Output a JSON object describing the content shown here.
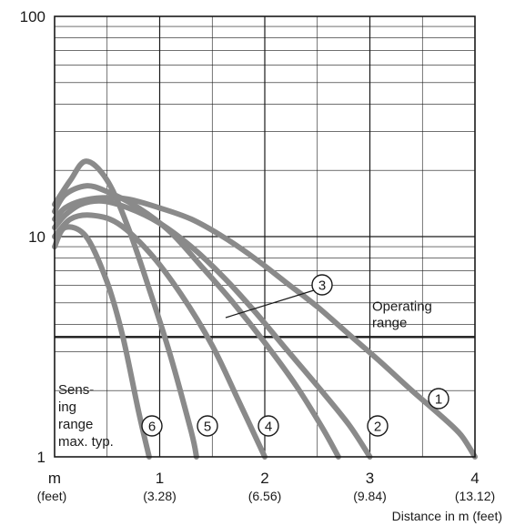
{
  "chart_data": {
    "type": "line",
    "title": "",
    "xlabel": "Distance in m (feet)",
    "ylabel": "",
    "x_unit_label": "m",
    "x_unit_sub_label": "(feet)",
    "xlim": [
      0,
      4
    ],
    "ylim": [
      1,
      100
    ],
    "y_scale": "log",
    "grid": true,
    "x_ticks": [
      {
        "value": 1,
        "label": "1",
        "sub": "(3.28)"
      },
      {
        "value": 2,
        "label": "2",
        "sub": "(6.56)"
      },
      {
        "value": 3,
        "label": "3",
        "sub": "(9.84)"
      },
      {
        "value": 4,
        "label": "4",
        "sub": "(13.12)"
      }
    ],
    "y_ticks": [
      {
        "value": 1,
        "label": "1"
      },
      {
        "value": 10,
        "label": "10"
      },
      {
        "value": 100,
        "label": "100"
      }
    ],
    "operating_range": {
      "value": 3.5,
      "label_line1": "Operating",
      "label_line2": "range"
    },
    "sensing_range_label": [
      "Sens-",
      "ing",
      "range",
      "max. typ."
    ],
    "series": [
      {
        "id": "1",
        "label": "①",
        "x": [
          0.0,
          0.1,
          0.25,
          0.45,
          0.7,
          1.0,
          1.3,
          1.6,
          1.9,
          2.2,
          2.5,
          2.8,
          3.1,
          3.4,
          3.7,
          3.87,
          4.0
        ],
        "y": [
          12.0,
          13.5,
          14.5,
          15.0,
          14.8,
          13.5,
          12.0,
          10.0,
          8.0,
          6.2,
          4.8,
          3.6,
          2.7,
          2.0,
          1.5,
          1.25,
          1.0
        ]
      },
      {
        "id": "2",
        "label": "②",
        "x": [
          0.0,
          0.1,
          0.25,
          0.45,
          0.7,
          1.0,
          1.3,
          1.6,
          1.9,
          2.2,
          2.5,
          2.8,
          3.0
        ],
        "y": [
          11.0,
          12.5,
          14.0,
          14.5,
          13.5,
          11.5,
          9.0,
          6.6,
          4.6,
          3.1,
          2.1,
          1.4,
          1.0
        ]
      },
      {
        "id": "3",
        "label": "③",
        "x": [
          0.0,
          0.1,
          0.3,
          0.5,
          0.8,
          1.1,
          1.4,
          1.7,
          2.0,
          2.3,
          2.55,
          2.7
        ],
        "y": [
          13.0,
          15.5,
          17.0,
          16.0,
          13.5,
          10.5,
          7.3,
          5.0,
          3.3,
          2.1,
          1.35,
          1.0
        ]
      },
      {
        "id": "4",
        "label": "④",
        "x": [
          0.0,
          0.15,
          0.35,
          0.6,
          0.9,
          1.2,
          1.5,
          1.75,
          2.0
        ],
        "y": [
          10.0,
          12.0,
          12.5,
          11.5,
          8.5,
          5.5,
          3.2,
          1.8,
          1.0
        ]
      },
      {
        "id": "5",
        "label": "⑤",
        "x": [
          0.0,
          0.15,
          0.3,
          0.5,
          0.7,
          0.9,
          1.1,
          1.3,
          1.35
        ],
        "y": [
          14.0,
          18.0,
          22.0,
          18.0,
          11.0,
          5.8,
          2.9,
          1.3,
          1.0
        ]
      },
      {
        "id": "6",
        "label": "⑥",
        "x": [
          0.0,
          0.1,
          0.3,
          0.5,
          0.65,
          0.8,
          0.9
        ],
        "y": [
          9.0,
          11.0,
          10.0,
          6.2,
          3.5,
          1.6,
          1.0
        ]
      }
    ],
    "callouts": [
      {
        "id": "3",
        "label": "③"
      },
      {
        "id": "1",
        "label": "①"
      },
      {
        "id": "2",
        "label": "②"
      },
      {
        "id": "4",
        "label": "④"
      },
      {
        "id": "5",
        "label": "⑤"
      },
      {
        "id": "6",
        "label": "⑥"
      }
    ],
    "colors": {
      "curve": "#8a8a8a",
      "ink": "#1a1a1a",
      "background": "#ffffff"
    }
  }
}
